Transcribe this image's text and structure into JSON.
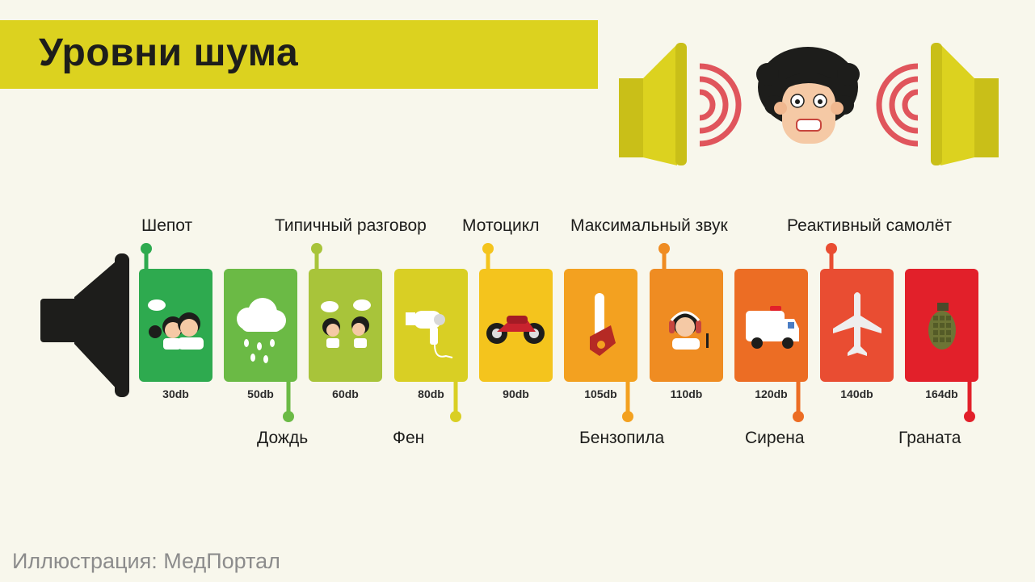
{
  "title": "Уровни шума",
  "footer": "Иллюстрация: МедПортал",
  "levels": [
    {
      "db": "30db",
      "label": "Шепот",
      "color": "#2eaa4f",
      "icon": "whisper-people-icon"
    },
    {
      "db": "50db",
      "label": "Дождь",
      "color": "#6bba45",
      "icon": "rain-cloud-icon"
    },
    {
      "db": "60db",
      "label": "Типичный разговор",
      "color": "#a8c43a",
      "icon": "conversation-people-icon"
    },
    {
      "db": "80db",
      "label": "Фен",
      "color": "#d9cf24",
      "icon": "hair-dryer-icon"
    },
    {
      "db": "90db",
      "label": "Мотоцикл",
      "color": "#f4c41d",
      "icon": "motorcycle-icon"
    },
    {
      "db": "105db",
      "label": "Бензопила",
      "color": "#f3a120",
      "icon": "chainsaw-icon"
    },
    {
      "db": "110db",
      "label": "Максимальный звук",
      "color": "#ef8c22",
      "icon": "headphones-person-icon"
    },
    {
      "db": "120db",
      "label": "Сирена",
      "color": "#ec6d24",
      "icon": "ambulance-siren-icon"
    },
    {
      "db": "140db",
      "label": "Реактивный самолёт",
      "color": "#e94d32",
      "icon": "jet-plane-icon"
    },
    {
      "db": "164db",
      "label": "Граната",
      "color": "#e2202a",
      "icon": "grenade-icon"
    }
  ]
}
